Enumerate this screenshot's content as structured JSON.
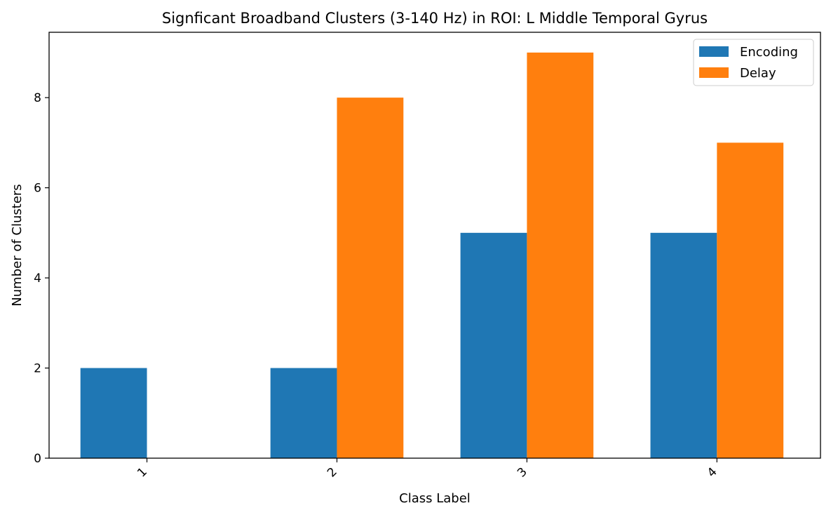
{
  "chart_data": {
    "type": "bar",
    "title": "Signficant Broadband Clusters (3-140 Hz) in ROI: L Middle Temporal Gyrus",
    "xlabel": "Class Label",
    "ylabel": "Number of Clusters",
    "categories": [
      "1",
      "2",
      "3",
      "4"
    ],
    "series": [
      {
        "name": "Encoding",
        "values": [
          2,
          2,
          5,
          5
        ],
        "color": "#1f77b4"
      },
      {
        "name": "Delay",
        "values": [
          0,
          8,
          9,
          7
        ],
        "color": "#ff7f0e"
      }
    ],
    "ylim": [
      0,
      9.45
    ],
    "yticks": [
      0,
      2,
      4,
      6,
      8
    ],
    "xtick_rotation": -45,
    "grid": false,
    "legend_position": "top-right"
  }
}
